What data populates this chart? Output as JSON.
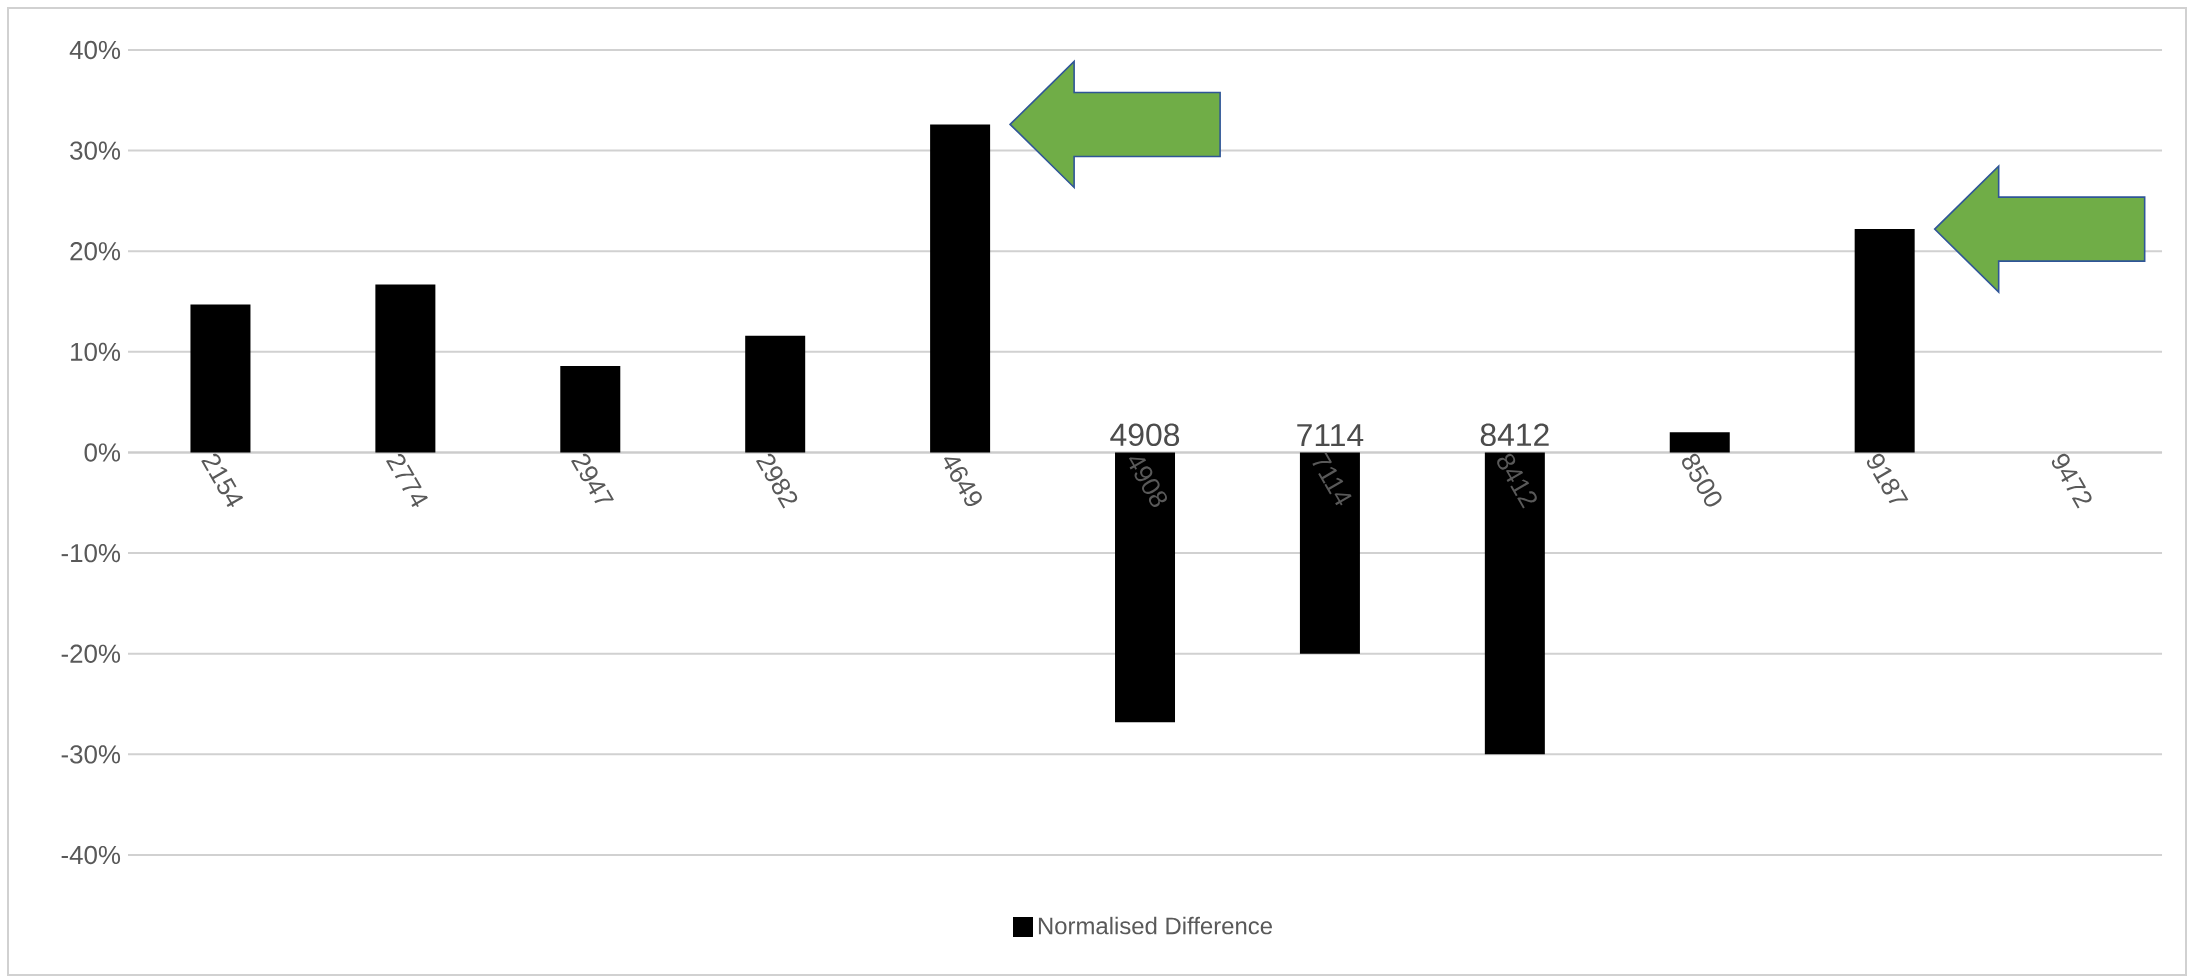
{
  "chart_data": {
    "type": "bar",
    "categories": [
      "2154",
      "2774",
      "2947",
      "2982",
      "4649",
      "4908",
      "7114",
      "8412",
      "8500",
      "9187",
      "9472"
    ],
    "series": [
      {
        "name": "Normalised Difference",
        "color": "#000000",
        "values": [
          14.7,
          16.7,
          8.6,
          11.6,
          32.6,
          -26.8,
          -20,
          -30,
          2,
          22.2,
          null
        ]
      }
    ],
    "ylim": [
      -40,
      40
    ],
    "yticks": [
      {
        "value": -40,
        "label": "-40%"
      },
      {
        "value": -30,
        "label": "-30%"
      },
      {
        "value": -20,
        "label": "-20%"
      },
      {
        "value": -10,
        "label": "-10%"
      },
      {
        "value": 0,
        "label": "0%"
      },
      {
        "value": 10,
        "label": "10%"
      },
      {
        "value": 20,
        "label": "20%"
      },
      {
        "value": 30,
        "label": "30%"
      },
      {
        "value": 40,
        "label": "40%"
      }
    ],
    "annotations": [
      {
        "text": "4908",
        "x": "4908",
        "y": 0
      },
      {
        "text": "7114",
        "x": "7114",
        "y": 0
      },
      {
        "text": "8412",
        "x": "8412",
        "y": 0
      }
    ],
    "grid": "y",
    "legend": "bottom"
  }
}
